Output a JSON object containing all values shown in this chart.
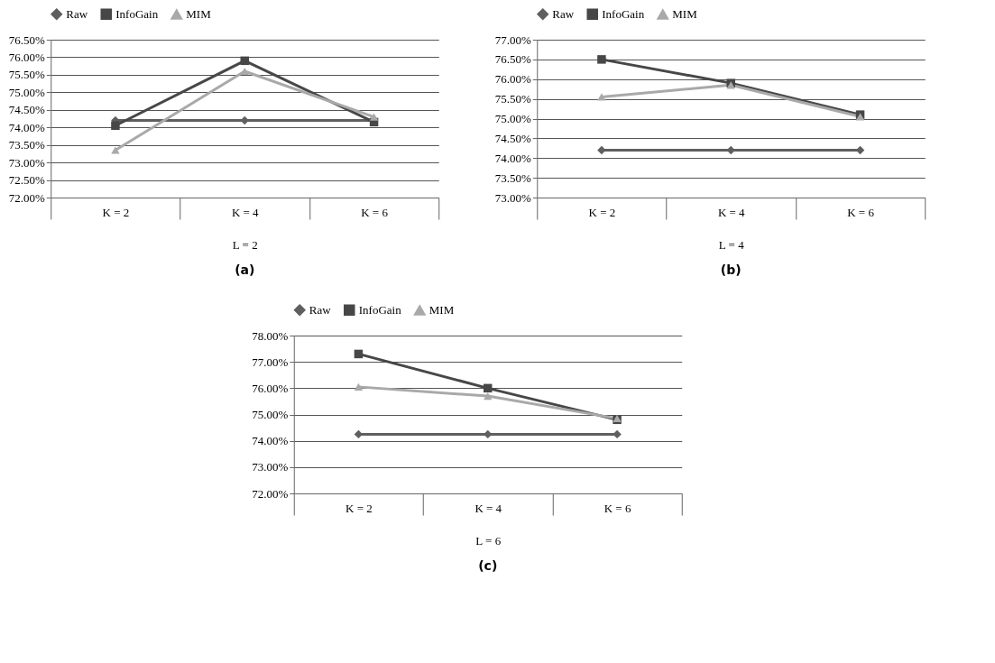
{
  "chart_data": [
    {
      "type": "line",
      "title": "(a)",
      "xlabel": "L = 2",
      "categories": [
        "K = 2",
        "K = 4",
        "K = 6"
      ],
      "ylim": [
        72,
        76.5
      ],
      "yticks": [
        {
          "value": 72,
          "label": "72.00%"
        },
        {
          "value": 72.5,
          "label": "72.50%"
        },
        {
          "value": 73,
          "label": "73.00%"
        },
        {
          "value": 73.5,
          "label": "73.50%"
        },
        {
          "value": 74,
          "label": "74.00%"
        },
        {
          "value": 74.5,
          "label": "74.50%"
        },
        {
          "value": 75,
          "label": "75.00%"
        },
        {
          "value": 75.5,
          "label": "75.50%"
        },
        {
          "value": 76,
          "label": "76.00%"
        },
        {
          "value": 76.5,
          "label": "76.50%"
        }
      ],
      "grid": "y",
      "legend": "top",
      "series": [
        {
          "name": "Raw",
          "color": "#5f5f5f",
          "marker": "diamond",
          "values": [
            74.2,
            74.2,
            74.2
          ]
        },
        {
          "name": "InfoGain",
          "color": "#474747",
          "marker": "square",
          "values": [
            74.05,
            75.9,
            74.15
          ]
        },
        {
          "name": "MIM",
          "color": "#a9a9a9",
          "marker": "triangle",
          "values": [
            73.35,
            75.6,
            74.3
          ]
        }
      ]
    },
    {
      "type": "line",
      "title": "(b)",
      "xlabel": "L = 4",
      "categories": [
        "K = 2",
        "K = 4",
        "K = 6"
      ],
      "ylim": [
        73,
        77
      ],
      "yticks": [
        {
          "value": 73,
          "label": "73.00%"
        },
        {
          "value": 73.5,
          "label": "73.50%"
        },
        {
          "value": 74,
          "label": "74.00%"
        },
        {
          "value": 74.5,
          "label": "74.50%"
        },
        {
          "value": 75,
          "label": "75.00%"
        },
        {
          "value": 75.5,
          "label": "75.50%"
        },
        {
          "value": 76,
          "label": "76.00%"
        },
        {
          "value": 76.5,
          "label": "76.50%"
        },
        {
          "value": 77,
          "label": "77.00%"
        }
      ],
      "grid": "y",
      "legend": "top",
      "series": [
        {
          "name": "Raw",
          "color": "#5f5f5f",
          "marker": "diamond",
          "values": [
            74.2,
            74.2,
            74.2
          ]
        },
        {
          "name": "InfoGain",
          "color": "#474747",
          "marker": "square",
          "values": [
            76.5,
            75.9,
            75.1
          ]
        },
        {
          "name": "MIM",
          "color": "#a9a9a9",
          "marker": "triangle",
          "values": [
            75.55,
            75.85,
            75.05
          ]
        }
      ]
    },
    {
      "type": "line",
      "title": "(c)",
      "xlabel": "L = 6",
      "categories": [
        "K = 2",
        "K = 4",
        "K = 6"
      ],
      "ylim": [
        72,
        78
      ],
      "yticks": [
        {
          "value": 72,
          "label": "72.00%"
        },
        {
          "value": 73,
          "label": "73.00%"
        },
        {
          "value": 74,
          "label": "74.00%"
        },
        {
          "value": 75,
          "label": "75.00%"
        },
        {
          "value": 76,
          "label": "76.00%"
        },
        {
          "value": 77,
          "label": "77.00%"
        },
        {
          "value": 78,
          "label": "78.00%"
        }
      ],
      "grid": "y",
      "legend": "top",
      "series": [
        {
          "name": "Raw",
          "color": "#5f5f5f",
          "marker": "diamond",
          "values": [
            74.25,
            74.25,
            74.25
          ]
        },
        {
          "name": "InfoGain",
          "color": "#474747",
          "marker": "square",
          "values": [
            77.3,
            76.0,
            74.8
          ]
        },
        {
          "name": "MIM",
          "color": "#a9a9a9",
          "marker": "triangle",
          "values": [
            76.05,
            75.7,
            74.85
          ]
        }
      ]
    }
  ]
}
